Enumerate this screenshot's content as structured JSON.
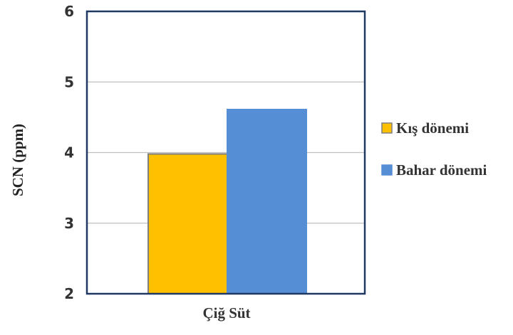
{
  "chart_data": {
    "type": "bar",
    "categories": [
      "Çiğ Süt"
    ],
    "series": [
      {
        "name": "Kış dönemi",
        "values": [
          3.98
        ],
        "color": "#FFC000",
        "border": "#7F7F7F"
      },
      {
        "name": "Bahar dönemi",
        "values": [
          4.61
        ],
        "color": "#558ED5",
        "border": "#558ED5"
      }
    ],
    "ylabel": "SCN (ppm)",
    "xlabel": "",
    "ylim": [
      2,
      6
    ],
    "yticks": [
      "2",
      "3",
      "4",
      "5",
      "6"
    ],
    "grid": true,
    "legend": "right",
    "frame_color": "#1F3864",
    "grid_color": "#BFBFBF"
  }
}
